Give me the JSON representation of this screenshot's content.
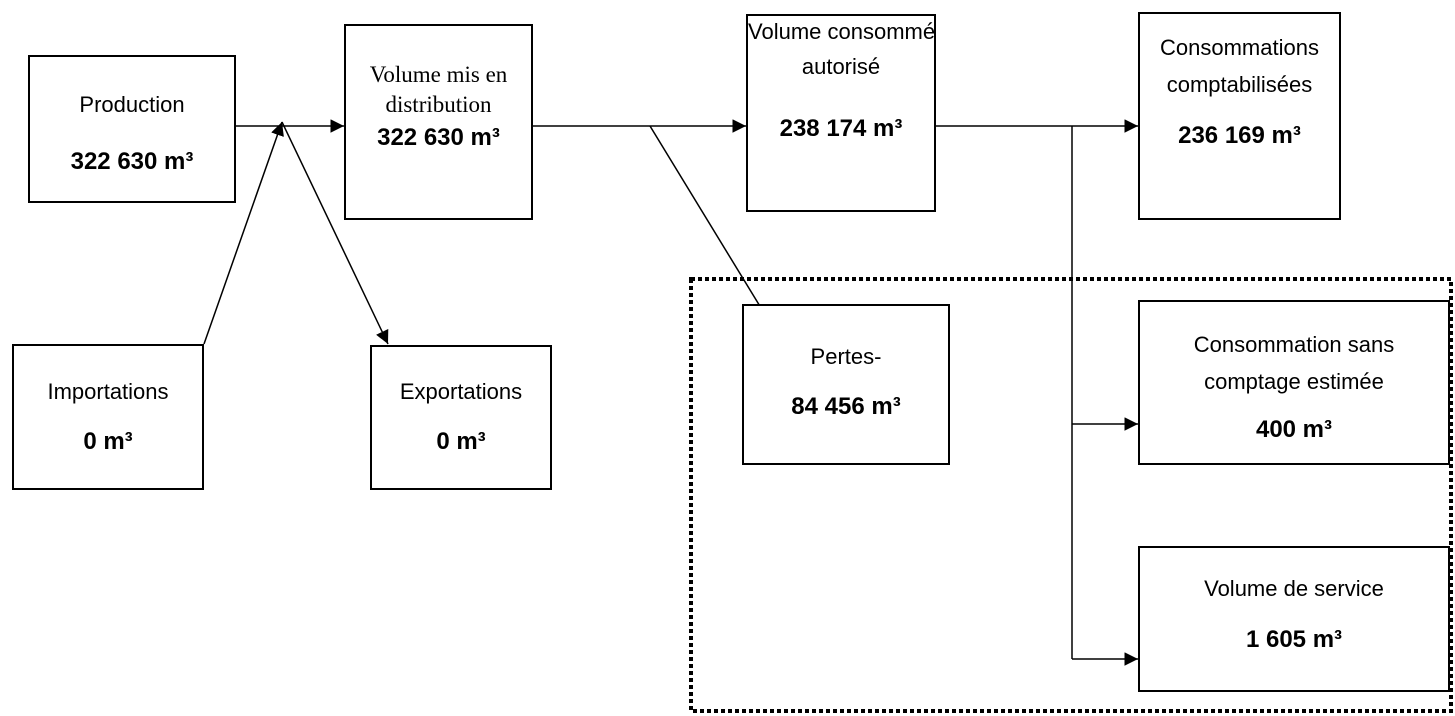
{
  "nodes": [
    {
      "label": [
        "Production"
      ],
      "value": "322 630 m³"
    },
    {
      "label": [
        "Volume mis en",
        "distribution"
      ],
      "value": "322 630 m³"
    },
    {
      "label": [
        "Volume consommé",
        "autorisé"
      ],
      "value": "238 174 m³"
    },
    {
      "label": [
        "Consommations",
        "comptabilisées"
      ],
      "value": "236 169 m³"
    },
    {
      "label": [
        "Importations"
      ],
      "value": "0 m³"
    },
    {
      "label": [
        "Exportations"
      ],
      "value": "0 m³"
    },
    {
      "label": [
        "Pertes-"
      ],
      "value": "84 456 m³"
    },
    {
      "label": [
        "Consommation sans",
        "comptage estimée"
      ],
      "value": "400 m³"
    },
    {
      "label": [
        "Volume de service"
      ],
      "value": "1 605 m³"
    }
  ]
}
